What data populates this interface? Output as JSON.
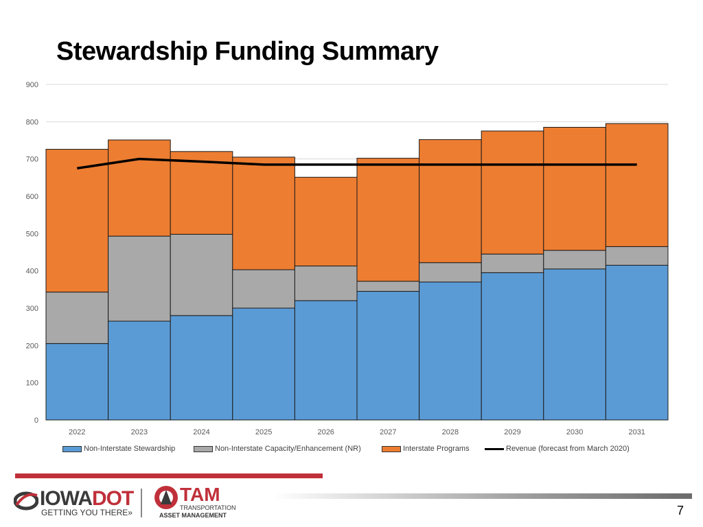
{
  "slide": {
    "title": "Stewardship Funding Summary",
    "page_number": "7"
  },
  "logos": {
    "iowa_word_a": "IOWA",
    "iowa_word_b": "DOT",
    "iowa_tagline": "GETTING YOU THERE»",
    "tam_word": "TAM",
    "tam_sub1": "TRANSPORTATION",
    "tam_sub2": "ASSET MANAGEMENT"
  },
  "colors": {
    "non_interstate_stewardship": "#5b9bd5",
    "non_interstate_capacity": "#a9a9a9",
    "interstate_programs": "#ed7d31",
    "revenue_line": "#000000",
    "accent_red": "#c0303a"
  },
  "chart_data": {
    "type": "bar",
    "stacked": true,
    "title": "",
    "xlabel": "",
    "ylabel": "",
    "categories": [
      "2022",
      "2023",
      "2024",
      "2025",
      "2026",
      "2027",
      "2028",
      "2029",
      "2030",
      "2031"
    ],
    "ylim": [
      0,
      900
    ],
    "yticks": [
      0,
      100,
      200,
      300,
      400,
      500,
      600,
      700,
      800,
      900
    ],
    "grid": true,
    "legend_position": "bottom",
    "series": [
      {
        "name": "Non-Interstate Stewardship",
        "type": "bar",
        "values": [
          205,
          265,
          280,
          300,
          320,
          345,
          370,
          395,
          405,
          415
        ]
      },
      {
        "name": "Non-Interstate Capacity/Enhancement (NR)",
        "type": "bar",
        "values": [
          138,
          228,
          218,
          103,
          93,
          27,
          52,
          50,
          50,
          50
        ]
      },
      {
        "name": "Interstate Programs",
        "type": "bar",
        "values": [
          383,
          258,
          222,
          302,
          238,
          330,
          330,
          330,
          330,
          330
        ]
      },
      {
        "name": "Revenue (forecast from March 2020)",
        "type": "line",
        "values": [
          675,
          700,
          693,
          685,
          685,
          685,
          685,
          685,
          685,
          685
        ]
      }
    ]
  }
}
